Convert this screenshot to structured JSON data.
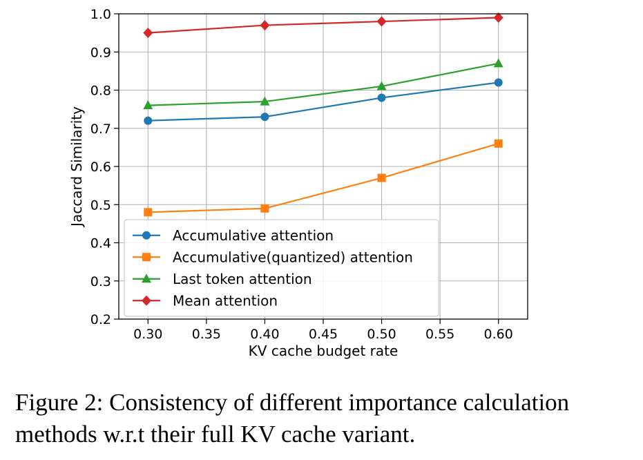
{
  "chart_data": {
    "type": "line",
    "title": "",
    "xlabel": "KV cache budget rate",
    "ylabel": "Jaccard Similarity",
    "x": [
      0.3,
      0.4,
      0.5,
      0.6
    ],
    "xlim": [
      0.275,
      0.625
    ],
    "ylim": [
      0.2,
      1.0
    ],
    "xticks": [
      "0.30",
      "0.35",
      "0.40",
      "0.45",
      "0.50",
      "0.55",
      "0.60"
    ],
    "yticks": [
      "0.2",
      "0.3",
      "0.4",
      "0.5",
      "0.6",
      "0.7",
      "0.8",
      "0.9",
      "1.0"
    ],
    "grid": true,
    "legend_position": "lower-left",
    "series": [
      {
        "name": "Accumulative attention",
        "values": [
          0.72,
          0.73,
          0.78,
          0.82
        ],
        "color": "#1f77b4",
        "marker": "circle"
      },
      {
        "name": "Accumulative(quantized) attention",
        "values": [
          0.48,
          0.49,
          0.57,
          0.66
        ],
        "color": "#ff7f0e",
        "marker": "square"
      },
      {
        "name": "Last token attention",
        "values": [
          0.76,
          0.77,
          0.81,
          0.87
        ],
        "color": "#2ca02c",
        "marker": "triangle"
      },
      {
        "name": "Mean attention",
        "values": [
          0.95,
          0.97,
          0.98,
          0.99
        ],
        "color": "#d62728",
        "marker": "diamond"
      }
    ]
  },
  "caption": "Figure 2: Consistency of different importance calculation methods w.r.t their full KV cache variant."
}
